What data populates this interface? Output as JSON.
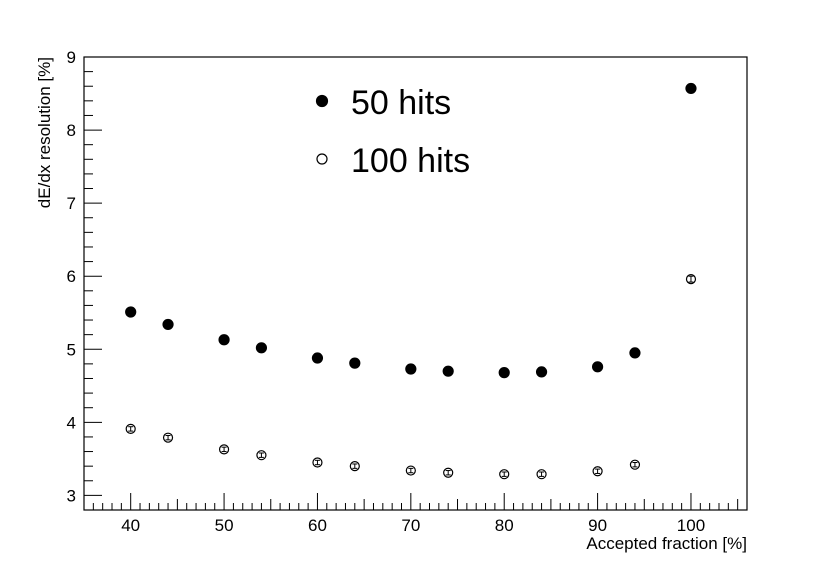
{
  "chart_data": {
    "type": "scatter",
    "title": "",
    "xlabel": "Accepted fraction [%]",
    "ylabel": "dE/dx resolution [%]",
    "xlim": [
      35,
      106
    ],
    "ylim": [
      2.8,
      9
    ],
    "x_ticks": [
      40,
      50,
      60,
      70,
      80,
      90,
      100
    ],
    "y_ticks": [
      3,
      4,
      5,
      6,
      7,
      8,
      9
    ],
    "grid": false,
    "legend": {
      "placement": "top-center"
    },
    "series": [
      {
        "name": "50 hits",
        "marker": "filled-circle",
        "color": "#000000",
        "x": [
          40,
          44,
          50,
          54,
          60,
          64,
          70,
          74,
          80,
          84,
          90,
          94,
          100
        ],
        "y": [
          5.51,
          5.34,
          5.13,
          5.02,
          4.88,
          4.81,
          4.73,
          4.7,
          4.68,
          4.69,
          4.76,
          4.95,
          8.57
        ]
      },
      {
        "name": "100 hits",
        "marker": "open-circle",
        "color": "#000000",
        "x": [
          40,
          44,
          50,
          54,
          60,
          64,
          70,
          74,
          80,
          84,
          90,
          94,
          100
        ],
        "y": [
          3.91,
          3.79,
          3.63,
          3.55,
          3.45,
          3.4,
          3.34,
          3.31,
          3.29,
          3.29,
          3.33,
          3.42,
          5.96
        ],
        "yerr": [
          0.03,
          0.03,
          0.03,
          0.03,
          0.03,
          0.03,
          0.03,
          0.03,
          0.03,
          0.03,
          0.03,
          0.03,
          0.04
        ]
      }
    ]
  }
}
